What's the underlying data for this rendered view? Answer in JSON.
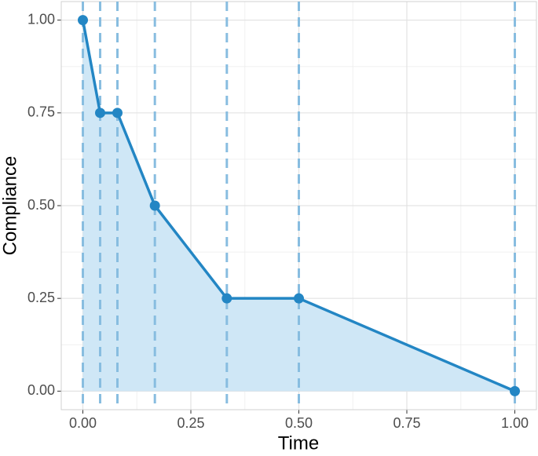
{
  "chart_data": {
    "type": "line",
    "x_label": "Time",
    "y_label": "Compliance",
    "x": [
      0,
      0.04,
      0.08,
      0.1667,
      0.3333,
      0.5,
      1.0
    ],
    "series": [
      {
        "name": "Compliance",
        "color": "#2386c4",
        "values": [
          1.0,
          0.75,
          0.75,
          0.5,
          0.25,
          0.25,
          0.0
        ]
      }
    ],
    "area": true,
    "area_color": "#cfe7f6",
    "vlines": true,
    "vline_color": "#88bde0",
    "xlim": [
      -0.05,
      1.05
    ],
    "ylim": [
      -0.05,
      1.05
    ],
    "xticks": [
      {
        "value": 0,
        "label": "0.00"
      },
      0.25,
      {
        "value": 0.5,
        "label": "0.50"
      },
      0.75,
      {
        "value": 1,
        "label": "1.00"
      }
    ],
    "yticks": [
      {
        "value": 0,
        "label": "0.00"
      },
      0.25,
      {
        "value": 0.5,
        "label": "0.50"
      },
      0.75,
      {
        "value": 1,
        "label": "1.00"
      }
    ],
    "x_minor_ticks": [
      0.125,
      0.375,
      0.625,
      0.875
    ],
    "y_minor_ticks": [
      0.125,
      0.375,
      0.625,
      0.875
    ],
    "grid": true
  }
}
